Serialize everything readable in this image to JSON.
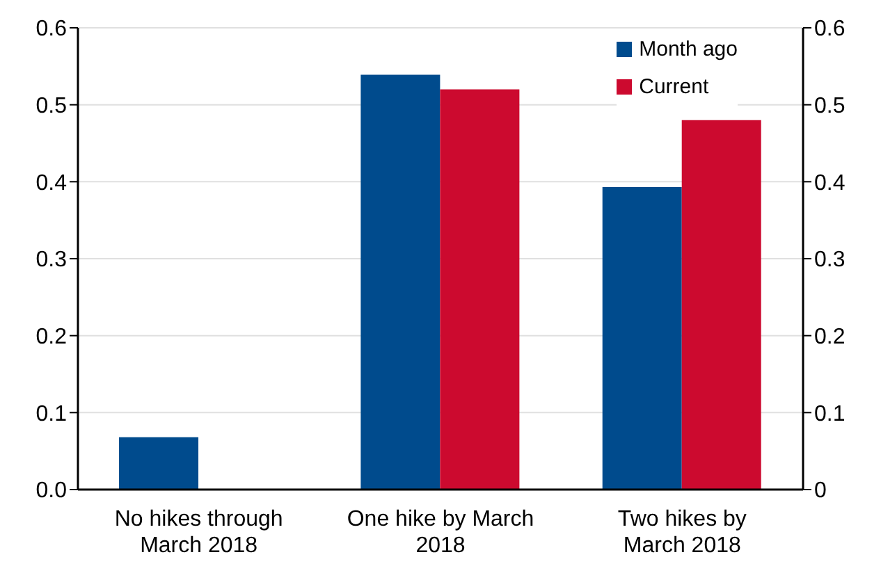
{
  "chart_data": {
    "type": "bar",
    "categories": [
      "No hikes through March 2018",
      "One hike by March 2018",
      "Two hikes by March 2018"
    ],
    "series": [
      {
        "name": "Month ago",
        "color": "#004b8d",
        "values": [
          0.068,
          0.539,
          0.393
        ]
      },
      {
        "name": "Current",
        "color": "#cc0a2f",
        "values": [
          null,
          0.52,
          0.48
        ]
      }
    ],
    "ylim": [
      0,
      0.6
    ],
    "yticks": [
      {
        "value": 0,
        "label": "0.0"
      },
      0.1,
      0.2,
      0.3,
      0.4,
      0.5,
      0.6
    ],
    "y2lim": [
      0,
      0.6
    ],
    "y2ticks": [
      0,
      0.1,
      0.2,
      0.3,
      0.4,
      0.5,
      0.6
    ],
    "grid": "y",
    "legend": "top right"
  }
}
